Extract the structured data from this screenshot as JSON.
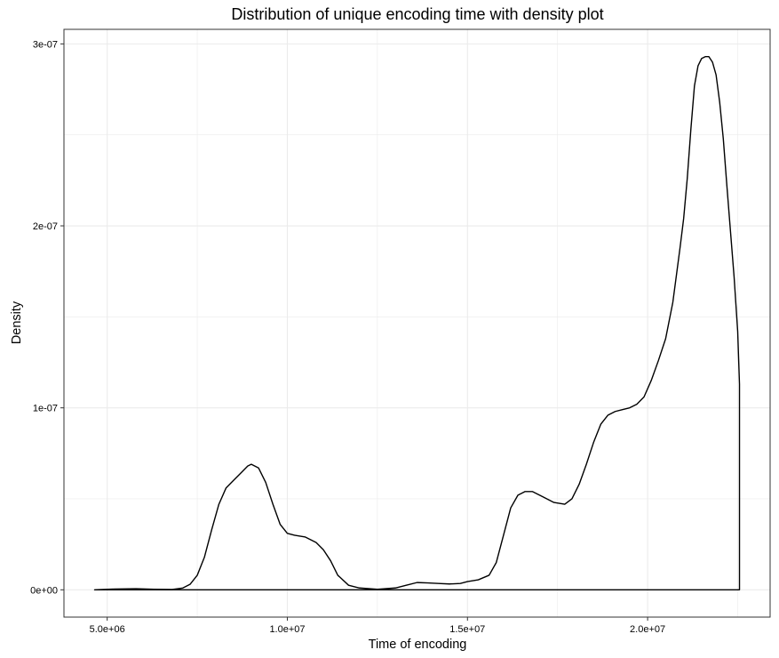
{
  "chart_data": {
    "type": "area",
    "title": "Distribution of unique encoding time with density plot",
    "xlabel": "Time of encoding",
    "ylabel": "Density",
    "xlim": [
      3800000,
      23400000
    ],
    "ylim": [
      -1.5e-08,
      3.08e-07
    ],
    "grid": true,
    "legend": "none",
    "colors": {
      "line": "#000000",
      "fill": "none",
      "grid": "#ebebeb",
      "panel_border": "#333333",
      "background": "#ffffff"
    },
    "x_ticks": [
      {
        "value": 5000000,
        "label": "5.0e+06"
      },
      {
        "value": 10000000,
        "label": "1.0e+07"
      },
      {
        "value": 15000000,
        "label": "1.5e+07"
      },
      {
        "value": 20000000,
        "label": "2.0e+07"
      }
    ],
    "y_ticks": [
      {
        "value": 0,
        "label": "0e+00"
      },
      {
        "value": 1e-07,
        "label": "1e-07"
      },
      {
        "value": 2e-07,
        "label": "2e-07"
      },
      {
        "value": 3e-07,
        "label": "3e-07"
      }
    ],
    "x_minor_gridlines": [
      7500000,
      12500000,
      17500000,
      22500000
    ],
    "y_minor_gridlines": [
      5e-08,
      1.5e-07,
      2.5e-07
    ],
    "series": [
      {
        "x": [
          4650000,
          5200000,
          5800000,
          6300000,
          6800000,
          7100000,
          7300000,
          7500000,
          7700000,
          7900000,
          8100000,
          8300000,
          8500000,
          8700000,
          8900000,
          9000000,
          9200000,
          9400000,
          9600000,
          9800000,
          10000000,
          10200000,
          10500000,
          10800000,
          11000000,
          11200000,
          11400000,
          11700000,
          12000000,
          12500000,
          13000000,
          13300000,
          13600000,
          13900000,
          14200000,
          14500000,
          14800000,
          15000000,
          15300000,
          15600000,
          15800000,
          16000000,
          16200000,
          16400000,
          16600000,
          16800000,
          17100000,
          17400000,
          17700000,
          17900000,
          18100000,
          18300000,
          18500000,
          18700000,
          18900000,
          19100000,
          19300000,
          19500000,
          19700000,
          19900000,
          20100000,
          20300000,
          20500000,
          20700000,
          20900000,
          21000000,
          21100000,
          21200000,
          21300000,
          21400000,
          21500000,
          21600000,
          21700000,
          21800000,
          21900000,
          22000000,
          22100000,
          22200000,
          22300000,
          22400000,
          22500000,
          22550000
        ],
        "y": [
          0,
          4e-10,
          6e-10,
          3e-10,
          2e-10,
          1e-09,
          3e-09,
          8e-09,
          1.8e-08,
          3.3e-08,
          4.7e-08,
          5.6e-08,
          6e-08,
          6.4e-08,
          6.8e-08,
          6.9e-08,
          6.7e-08,
          5.9e-08,
          4.7e-08,
          3.6e-08,
          3.1e-08,
          3e-08,
          2.9e-08,
          2.6e-08,
          2.2e-08,
          1.6e-08,
          8e-09,
          2.5e-09,
          1e-09,
          3e-10,
          1e-09,
          2.5e-09,
          4e-09,
          3.8e-09,
          3.5e-09,
          3.2e-09,
          3.5e-09,
          4.5e-09,
          5.5e-09,
          8e-09,
          1.5e-08,
          3e-08,
          4.5e-08,
          5.2e-08,
          5.4e-08,
          5.4e-08,
          5.1e-08,
          4.8e-08,
          4.7e-08,
          5e-08,
          5.8e-08,
          6.9e-08,
          8.1e-08,
          9.1e-08,
          9.6e-08,
          9.8e-08,
          9.9e-08,
          1e-07,
          1.02e-07,
          1.06e-07,
          1.15e-07,
          1.26e-07,
          1.38e-07,
          1.58e-07,
          1.88e-07,
          2.04e-07,
          2.26e-07,
          2.53e-07,
          2.77e-07,
          2.88e-07,
          2.92e-07,
          2.93e-07,
          2.93e-07,
          2.9e-07,
          2.83e-07,
          2.68e-07,
          2.48e-07,
          2.22e-07,
          1.97e-07,
          1.72e-07,
          1.42e-07,
          1.13e-07
        ]
      }
    ]
  }
}
